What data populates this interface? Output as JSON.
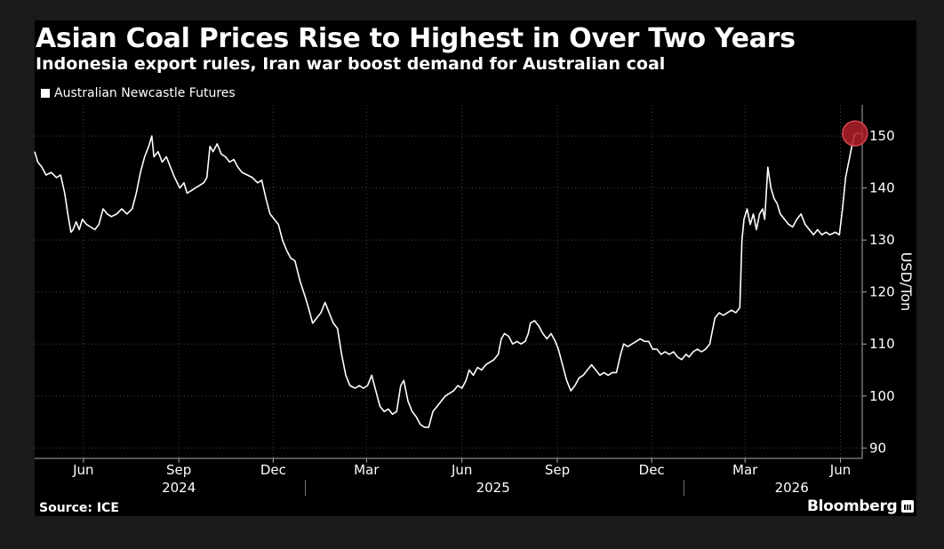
{
  "chart_data": {
    "type": "line",
    "title": "Asian Coal Prices Rise to Highest in Over Two Years",
    "subtitle": "Indonesia export rules, Iran war boost demand for Australian coal",
    "ylabel": "USD/Ton",
    "ylim": [
      88,
      156
    ],
    "yticks": [
      90,
      100,
      110,
      120,
      130,
      140,
      150
    ],
    "xlim": [
      "2024-04-15",
      "2026-06-22"
    ],
    "xticks": [
      {
        "label": "Jun",
        "date": "2024-06-01"
      },
      {
        "label": "Sep",
        "date": "2024-09-01"
      },
      {
        "label": "Dec",
        "date": "2024-12-01"
      },
      {
        "label": "Mar",
        "date": "2025-03-01"
      },
      {
        "label": "Jun",
        "date": "2025-06-01"
      },
      {
        "label": "Sep",
        "date": "2025-09-01"
      },
      {
        "label": "Dec",
        "date": "2025-12-01"
      },
      {
        "label": "Mar",
        "date": "2026-03-01"
      },
      {
        "label": "Jun",
        "date": "2026-06-01"
      }
    ],
    "years": [
      {
        "label": "2024",
        "date": "2024-09-01"
      },
      {
        "label": "2025",
        "date": "2025-07-01"
      },
      {
        "label": "2026",
        "date": "2026-04-15"
      }
    ],
    "year_boundaries": [
      "2025-01-01",
      "2026-01-01"
    ],
    "grid": true,
    "legend_position": "top-left",
    "highlight": {
      "date": "2026-06-15",
      "value": 150.5
    },
    "series": [
      {
        "name": "Australian Newcastle Futures",
        "color": "#ffffff",
        "points": [
          [
            "2024-04-15",
            147
          ],
          [
            "2024-04-18",
            145
          ],
          [
            "2024-04-22",
            144
          ],
          [
            "2024-04-26",
            142.5
          ],
          [
            "2024-05-01",
            143
          ],
          [
            "2024-05-06",
            142
          ],
          [
            "2024-05-10",
            142.5
          ],
          [
            "2024-05-14",
            139
          ],
          [
            "2024-05-17",
            135
          ],
          [
            "2024-05-20",
            131.5
          ],
          [
            "2024-05-22",
            132
          ],
          [
            "2024-05-25",
            133.5
          ],
          [
            "2024-05-28",
            132
          ],
          [
            "2024-05-31",
            134
          ],
          [
            "2024-06-04",
            133
          ],
          [
            "2024-06-08",
            132.5
          ],
          [
            "2024-06-12",
            132
          ],
          [
            "2024-06-16",
            133
          ],
          [
            "2024-06-20",
            136
          ],
          [
            "2024-06-24",
            135
          ],
          [
            "2024-06-28",
            134.5
          ],
          [
            "2024-07-03",
            135
          ],
          [
            "2024-07-08",
            136
          ],
          [
            "2024-07-13",
            135
          ],
          [
            "2024-07-18",
            136
          ],
          [
            "2024-07-22",
            139
          ],
          [
            "2024-07-26",
            143
          ],
          [
            "2024-07-30",
            146
          ],
          [
            "2024-08-03",
            148
          ],
          [
            "2024-08-06",
            150
          ],
          [
            "2024-08-08",
            146
          ],
          [
            "2024-08-12",
            147
          ],
          [
            "2024-08-16",
            145
          ],
          [
            "2024-08-20",
            146
          ],
          [
            "2024-08-24",
            144
          ],
          [
            "2024-08-28",
            142
          ],
          [
            "2024-09-02",
            140
          ],
          [
            "2024-09-06",
            141
          ],
          [
            "2024-09-09",
            139
          ],
          [
            "2024-09-13",
            139.5
          ],
          [
            "2024-09-17",
            140
          ],
          [
            "2024-09-21",
            140.5
          ],
          [
            "2024-09-25",
            141
          ],
          [
            "2024-09-28",
            142
          ],
          [
            "2024-10-01",
            148
          ],
          [
            "2024-10-04",
            147
          ],
          [
            "2024-10-08",
            148.5
          ],
          [
            "2024-10-12",
            146.5
          ],
          [
            "2024-10-16",
            146
          ],
          [
            "2024-10-20",
            145
          ],
          [
            "2024-10-24",
            145.5
          ],
          [
            "2024-10-28",
            144
          ],
          [
            "2024-11-01",
            143
          ],
          [
            "2024-11-06",
            142.5
          ],
          [
            "2024-11-11",
            142
          ],
          [
            "2024-11-16",
            141
          ],
          [
            "2024-11-20",
            141.5
          ],
          [
            "2024-11-24",
            138
          ],
          [
            "2024-11-28",
            135
          ],
          [
            "2024-12-02",
            134
          ],
          [
            "2024-12-06",
            133
          ],
          [
            "2024-12-10",
            130
          ],
          [
            "2024-12-14",
            128
          ],
          [
            "2024-12-18",
            126.5
          ],
          [
            "2024-12-22",
            126
          ],
          [
            "2024-12-27",
            122
          ],
          [
            "2025-01-01",
            119
          ],
          [
            "2025-01-04",
            117
          ],
          [
            "2025-01-08",
            114
          ],
          [
            "2025-01-12",
            115
          ],
          [
            "2025-01-16",
            116
          ],
          [
            "2025-01-20",
            118
          ],
          [
            "2025-01-24",
            116
          ],
          [
            "2025-01-28",
            114
          ],
          [
            "2025-02-01",
            113
          ],
          [
            "2025-02-05",
            108
          ],
          [
            "2025-02-09",
            104
          ],
          [
            "2025-02-13",
            102
          ],
          [
            "2025-02-18",
            101.5
          ],
          [
            "2025-02-22",
            102
          ],
          [
            "2025-02-26",
            101.5
          ],
          [
            "2025-03-02",
            102
          ],
          [
            "2025-03-06",
            104
          ],
          [
            "2025-03-10",
            101
          ],
          [
            "2025-03-14",
            98
          ],
          [
            "2025-03-18",
            97
          ],
          [
            "2025-03-22",
            97.5
          ],
          [
            "2025-03-26",
            96.5
          ],
          [
            "2025-03-30",
            97
          ],
          [
            "2025-04-03",
            102
          ],
          [
            "2025-04-06",
            103
          ],
          [
            "2025-04-10",
            99
          ],
          [
            "2025-04-14",
            97
          ],
          [
            "2025-04-18",
            96
          ],
          [
            "2025-04-22",
            94.5
          ],
          [
            "2025-04-26",
            94
          ],
          [
            "2025-04-30",
            94
          ],
          [
            "2025-05-04",
            97
          ],
          [
            "2025-05-08",
            98
          ],
          [
            "2025-05-12",
            99
          ],
          [
            "2025-05-16",
            100
          ],
          [
            "2025-05-20",
            100.5
          ],
          [
            "2025-05-24",
            101
          ],
          [
            "2025-05-28",
            102
          ],
          [
            "2025-06-01",
            101.5
          ],
          [
            "2025-06-05",
            103
          ],
          [
            "2025-06-08",
            105
          ],
          [
            "2025-06-12",
            104
          ],
          [
            "2025-06-16",
            105.5
          ],
          [
            "2025-06-20",
            105
          ],
          [
            "2025-06-24",
            106
          ],
          [
            "2025-06-28",
            106.5
          ],
          [
            "2025-07-02",
            107
          ],
          [
            "2025-07-06",
            108
          ],
          [
            "2025-07-09",
            111
          ],
          [
            "2025-07-12",
            112
          ],
          [
            "2025-07-16",
            111.5
          ],
          [
            "2025-07-20",
            110
          ],
          [
            "2025-07-24",
            110.5
          ],
          [
            "2025-07-28",
            110
          ],
          [
            "2025-08-01",
            110.5
          ],
          [
            "2025-08-04",
            112
          ],
          [
            "2025-08-06",
            114
          ],
          [
            "2025-08-10",
            114.5
          ],
          [
            "2025-08-14",
            113.5
          ],
          [
            "2025-08-18",
            112
          ],
          [
            "2025-08-22",
            111
          ],
          [
            "2025-08-26",
            112
          ],
          [
            "2025-08-30",
            110.5
          ],
          [
            "2025-09-02",
            109
          ],
          [
            "2025-09-06",
            106
          ],
          [
            "2025-09-10",
            103
          ],
          [
            "2025-09-14",
            101
          ],
          [
            "2025-09-18",
            102
          ],
          [
            "2025-09-22",
            103.5
          ],
          [
            "2025-09-26",
            104
          ],
          [
            "2025-09-30",
            105
          ],
          [
            "2025-10-04",
            106
          ],
          [
            "2025-10-08",
            105
          ],
          [
            "2025-10-12",
            104
          ],
          [
            "2025-10-16",
            104.5
          ],
          [
            "2025-10-20",
            104
          ],
          [
            "2025-10-24",
            104.5
          ],
          [
            "2025-10-28",
            104.5
          ],
          [
            "2025-11-01",
            108
          ],
          [
            "2025-11-04",
            110
          ],
          [
            "2025-11-08",
            109.5
          ],
          [
            "2025-11-12",
            110
          ],
          [
            "2025-11-16",
            110.5
          ],
          [
            "2025-11-20",
            111
          ],
          [
            "2025-11-24",
            110.5
          ],
          [
            "2025-11-28",
            110.5
          ],
          [
            "2025-12-02",
            109
          ],
          [
            "2025-12-06",
            109
          ],
          [
            "2025-12-10",
            108
          ],
          [
            "2025-12-14",
            108.5
          ],
          [
            "2025-12-18",
            108
          ],
          [
            "2025-12-22",
            108.5
          ],
          [
            "2025-12-26",
            107.5
          ],
          [
            "2025-12-30",
            107
          ],
          [
            "2026-01-03",
            108
          ],
          [
            "2026-01-06",
            107.5
          ],
          [
            "2026-01-10",
            108.5
          ],
          [
            "2026-01-14",
            109
          ],
          [
            "2026-01-18",
            108.5
          ],
          [
            "2026-01-22",
            109
          ],
          [
            "2026-01-26",
            110
          ],
          [
            "2026-01-28",
            112
          ],
          [
            "2026-01-31",
            115
          ],
          [
            "2026-02-04",
            116
          ],
          [
            "2026-02-08",
            115.5
          ],
          [
            "2026-02-12",
            116
          ],
          [
            "2026-02-16",
            116.5
          ],
          [
            "2026-02-20",
            116
          ],
          [
            "2026-02-24",
            117
          ],
          [
            "2026-02-26",
            130
          ],
          [
            "2026-02-28",
            134
          ],
          [
            "2026-03-03",
            136
          ],
          [
            "2026-03-06",
            133
          ],
          [
            "2026-03-09",
            135
          ],
          [
            "2026-03-12",
            132
          ],
          [
            "2026-03-15",
            135
          ],
          [
            "2026-03-18",
            136
          ],
          [
            "2026-03-20",
            134
          ],
          [
            "2026-03-23",
            144
          ],
          [
            "2026-03-26",
            140
          ],
          [
            "2026-03-29",
            138
          ],
          [
            "2026-04-01",
            137
          ],
          [
            "2026-04-04",
            135
          ],
          [
            "2026-04-08",
            134
          ],
          [
            "2026-04-12",
            133
          ],
          [
            "2026-04-16",
            132.5
          ],
          [
            "2026-04-20",
            134
          ],
          [
            "2026-04-24",
            135
          ],
          [
            "2026-04-28",
            133
          ],
          [
            "2026-05-02",
            132
          ],
          [
            "2026-05-06",
            131
          ],
          [
            "2026-05-10",
            132
          ],
          [
            "2026-05-14",
            131
          ],
          [
            "2026-05-18",
            131.5
          ],
          [
            "2026-05-22",
            131
          ],
          [
            "2026-05-27",
            131.5
          ],
          [
            "2026-05-31",
            131
          ],
          [
            "2026-06-03",
            136
          ],
          [
            "2026-06-06",
            142
          ],
          [
            "2026-06-09",
            145
          ],
          [
            "2026-06-12",
            148
          ],
          [
            "2026-06-15",
            150.5
          ]
        ]
      }
    ]
  },
  "source": "Source: ICE",
  "brand": "Bloomberg",
  "brand_icon": "bloomberg-chart-icon"
}
